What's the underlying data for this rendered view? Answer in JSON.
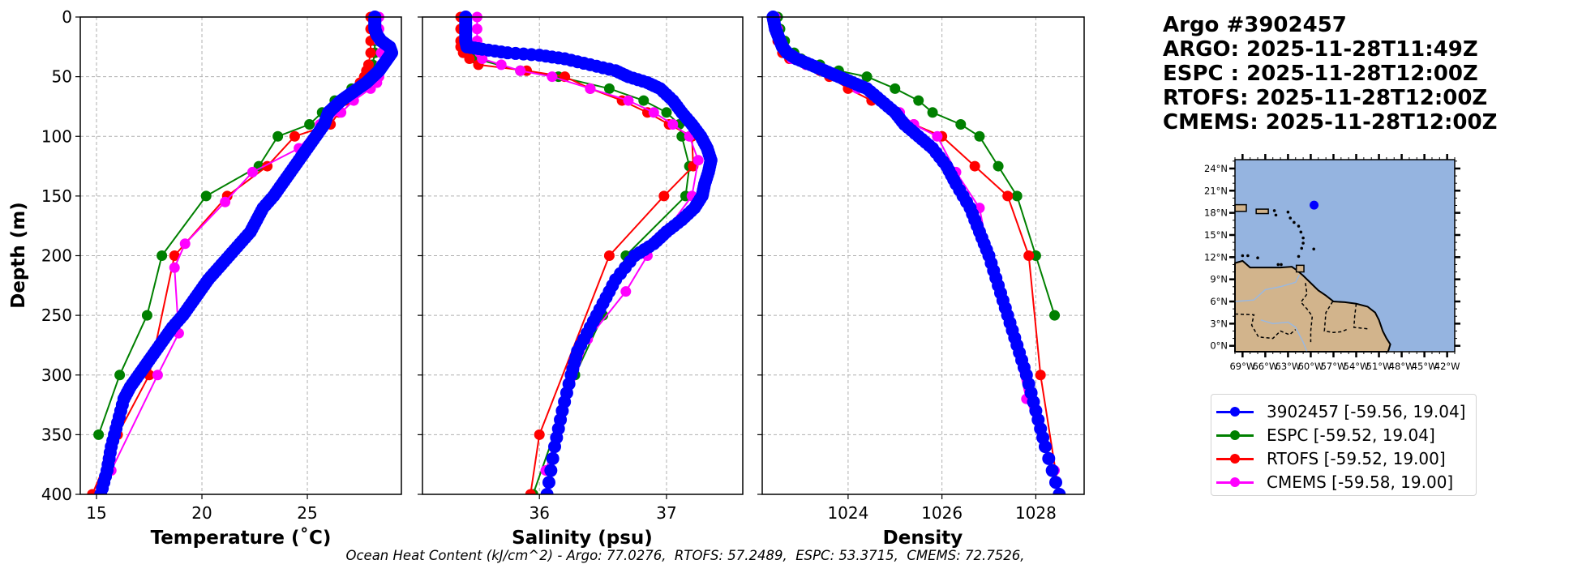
{
  "colors": {
    "argo": "#0000ff",
    "espc": "#008000",
    "rtofs": "#ff0000",
    "cmems": "#ff00ff",
    "ocean": "#95b4e0",
    "land": "#d2b48c",
    "river": "#9ab8e0",
    "grid": "#b0b0b0"
  },
  "title": {
    "lines": [
      "Argo #3902457",
      "ARGO: 2025-11-28T11:49Z",
      "ESPC : 2025-11-28T12:00Z",
      "RTOFS: 2025-11-28T12:00Z",
      "CMEMS: 2025-11-28T12:00Z"
    ]
  },
  "legend": {
    "items": [
      {
        "label": "3902457 [-59.56, 19.04]",
        "series": "argo"
      },
      {
        "label": "ESPC [-59.52, 19.04]",
        "series": "espc"
      },
      {
        "label": "RTOFS [-59.52, 19.00]",
        "series": "rtofs"
      },
      {
        "label": "CMEMS [-59.58, 19.00]",
        "series": "cmems"
      }
    ]
  },
  "footer": {
    "text": "Ocean Heat Content (kJ/cm^2) - Argo: 77.0276,  RTOFS: 57.2489,  ESPC: 53.3715,  CMEMS: 72.7526,"
  },
  "map": {
    "lat_labels": [
      "24°N",
      "21°N",
      "18°N",
      "15°N",
      "12°N",
      "9°N",
      "6°N",
      "3°N",
      "0°N"
    ],
    "lat_values": [
      24,
      21,
      18,
      15,
      12,
      9,
      6,
      3,
      0
    ],
    "lon_labels": [
      "69°W",
      "66°W",
      "63°W",
      "60°W",
      "57°W",
      "54°W",
      "51°W",
      "48°W",
      "45°W",
      "42°W"
    ],
    "lon_values": [
      -69,
      -66,
      -63,
      -60,
      -57,
      -54,
      -51,
      -48,
      -45,
      -42
    ],
    "lon_range": [
      -70,
      -41
    ],
    "lat_range": [
      -0.8,
      25.2
    ],
    "float_position": {
      "lon": -59.56,
      "lat": 19.04
    }
  },
  "chart_data": [
    {
      "type": "line",
      "title": "",
      "xlabel": "Temperature (˚C)",
      "ylabel": "Depth (m)",
      "xlim": [
        14.23,
        29.46
      ],
      "ylim": [
        400,
        0
      ],
      "xticks": [
        15,
        20,
        25
      ],
      "xtick_labels": [
        "15",
        "20",
        "25"
      ],
      "yticks": [
        0,
        50,
        100,
        150,
        200,
        250,
        300,
        350,
        400
      ],
      "ytick_labels": [
        "0",
        "50",
        "100",
        "150",
        "200",
        "250",
        "300",
        "350",
        "400"
      ],
      "grid": true,
      "series": [
        {
          "name": "argo",
          "x": [
            28.2,
            28.2,
            28.2,
            28.3,
            28.5,
            28.9,
            29.0,
            28.8,
            28.6,
            28.4,
            28.1,
            27.8,
            27.4,
            27.0,
            26.6,
            26.3,
            26.0,
            25.8,
            25.4,
            25.0,
            24.6,
            24.2,
            23.8,
            23.4,
            22.9,
            22.6,
            22.3,
            21.8,
            21.3,
            20.8,
            20.3,
            19.9,
            19.5,
            19.1,
            18.6,
            18.2,
            17.8,
            17.4,
            17.0,
            16.6,
            16.3,
            16.0,
            15.7,
            15.5,
            15.2
          ],
          "depth": [
            0,
            5,
            10,
            15,
            20,
            25,
            30,
            35,
            40,
            45,
            50,
            55,
            60,
            65,
            70,
            75,
            80,
            90,
            100,
            110,
            120,
            130,
            140,
            150,
            160,
            170,
            180,
            190,
            200,
            210,
            220,
            230,
            240,
            250,
            260,
            270,
            280,
            290,
            300,
            310,
            320,
            340,
            360,
            380,
            400
          ]
        },
        {
          "name": "espc",
          "x": [
            28.2,
            28.2,
            28.2,
            28.2,
            28.1,
            27.6,
            27.1,
            26.3,
            25.7,
            25.1,
            23.6,
            22.7,
            20.2,
            18.1,
            17.4,
            16.1,
            15.1
          ],
          "depth": [
            0,
            10,
            20,
            30,
            40,
            55,
            60,
            70,
            80,
            90,
            100,
            125,
            150,
            200,
            250,
            300,
            350
          ]
        },
        {
          "name": "rtofs",
          "x": [
            28.0,
            28.0,
            28.0,
            28.0,
            27.9,
            27.8,
            27.7,
            27.5,
            27.3,
            26.8,
            26.5,
            26.1,
            24.4,
            23.1,
            21.2,
            18.7,
            17.5,
            16.0,
            14.8
          ],
          "depth": [
            0,
            10,
            20,
            30,
            40,
            45,
            50,
            55,
            60,
            70,
            80,
            90,
            100,
            125,
            150,
            200,
            300,
            350,
            400
          ]
        },
        {
          "name": "cmems",
          "x": [
            28.4,
            28.4,
            28.4,
            28.5,
            28.5,
            28.4,
            28.3,
            28.0,
            27.2,
            26.6,
            25.6,
            24.6,
            22.4,
            21.1,
            19.2,
            18.7,
            18.9,
            17.9,
            15.7
          ],
          "depth": [
            0,
            10,
            20,
            30,
            40,
            50,
            55,
            60,
            70,
            80,
            90,
            110,
            130,
            155,
            190,
            210,
            265,
            300,
            380
          ]
        }
      ]
    },
    {
      "type": "line",
      "title": "",
      "xlabel": "Salinity (psu)",
      "ylabel": "",
      "xlim": [
        35.08,
        37.6
      ],
      "ylim": [
        400,
        0
      ],
      "xticks": [
        36,
        37
      ],
      "xtick_labels": [
        "36",
        "37"
      ],
      "grid": true,
      "series": [
        {
          "name": "argo",
          "x": [
            35.42,
            35.42,
            35.42,
            35.43,
            35.55,
            35.75,
            36.0,
            36.2,
            36.4,
            36.6,
            36.7,
            36.85,
            36.95,
            37.05,
            37.12,
            37.2,
            37.27,
            37.32,
            37.35,
            37.33,
            37.3,
            37.28,
            37.22,
            37.12,
            37.0,
            36.9,
            36.75,
            36.6,
            36.5,
            36.4,
            36.3,
            36.25,
            36.18,
            36.12,
            36.06
          ],
          "depth": [
            0,
            10,
            20,
            25,
            27,
            30,
            32,
            35,
            40,
            45,
            50,
            55,
            60,
            70,
            80,
            90,
            100,
            110,
            120,
            130,
            140,
            150,
            160,
            170,
            180,
            190,
            200,
            220,
            240,
            260,
            280,
            300,
            330,
            360,
            400
          ]
        },
        {
          "name": "espc",
          "x": [
            35.43,
            35.43,
            35.43,
            35.44,
            35.46,
            35.5,
            35.85,
            36.15,
            36.55,
            36.82,
            37.0,
            37.1,
            37.12,
            37.18,
            37.15,
            36.68,
            36.5,
            36.28,
            35.95
          ],
          "depth": [
            0,
            10,
            20,
            25,
            30,
            35,
            45,
            50,
            60,
            70,
            80,
            90,
            100,
            125,
            150,
            200,
            250,
            300,
            400
          ]
        },
        {
          "name": "rtofs",
          "x": [
            35.38,
            35.38,
            35.38,
            35.38,
            35.4,
            35.45,
            35.52,
            35.9,
            36.2,
            36.4,
            36.65,
            36.85,
            37.02,
            37.2,
            37.21,
            36.98,
            36.55,
            36.0,
            35.93
          ],
          "depth": [
            0,
            10,
            20,
            25,
            30,
            35,
            40,
            45,
            50,
            60,
            70,
            80,
            90,
            100,
            125,
            150,
            200,
            350,
            400
          ]
        },
        {
          "name": "cmems",
          "x": [
            35.51,
            35.51,
            35.51,
            35.52,
            35.53,
            35.55,
            35.7,
            35.85,
            36.1,
            36.4,
            36.7,
            36.9,
            37.05,
            37.18,
            37.25,
            37.2,
            36.85,
            36.68,
            36.38,
            36.05
          ],
          "depth": [
            0,
            10,
            20,
            25,
            30,
            35,
            40,
            45,
            50,
            60,
            70,
            80,
            90,
            100,
            120,
            150,
            200,
            230,
            270,
            380
          ]
        }
      ]
    },
    {
      "type": "line",
      "title": "",
      "xlabel": "Density",
      "ylabel": "",
      "xlim": [
        1022.17,
        1029.03
      ],
      "ylim": [
        400,
        0
      ],
      "xticks": [
        1024,
        1026,
        1028
      ],
      "xtick_labels": [
        "1024",
        "1026",
        "1028"
      ],
      "grid": true,
      "series": [
        {
          "name": "argo",
          "x": [
            1022.4,
            1022.45,
            1022.55,
            1022.6,
            1022.7,
            1022.9,
            1023.2,
            1023.5,
            1023.8,
            1024.1,
            1024.4,
            1024.7,
            1025.0,
            1025.2,
            1025.5,
            1025.8,
            1026.1,
            1026.3,
            1026.6,
            1026.8,
            1027.0,
            1027.2,
            1027.4,
            1027.6,
            1027.8,
            1028.0,
            1028.2,
            1028.5
          ],
          "depth": [
            0,
            10,
            20,
            25,
            30,
            35,
            40,
            45,
            50,
            55,
            60,
            70,
            80,
            90,
            100,
            110,
            125,
            140,
            160,
            180,
            200,
            225,
            250,
            275,
            300,
            330,
            360,
            400
          ]
        },
        {
          "name": "espc",
          "x": [
            1022.5,
            1022.55,
            1022.65,
            1022.85,
            1023.0,
            1023.4,
            1023.8,
            1024.4,
            1025.0,
            1025.5,
            1025.8,
            1026.4,
            1026.8,
            1027.2,
            1027.6,
            1028.0,
            1028.4
          ],
          "depth": [
            0,
            10,
            20,
            30,
            35,
            40,
            45,
            50,
            60,
            70,
            80,
            90,
            100,
            125,
            150,
            200,
            250
          ]
        },
        {
          "name": "rtofs",
          "x": [
            1022.4,
            1022.45,
            1022.5,
            1022.6,
            1022.75,
            1023.1,
            1023.4,
            1023.6,
            1024.0,
            1024.5,
            1025.0,
            1025.4,
            1026.0,
            1026.7,
            1027.4,
            1027.85,
            1028.1,
            1028.5
          ],
          "depth": [
            0,
            10,
            20,
            30,
            35,
            40,
            45,
            50,
            60,
            70,
            80,
            90,
            100,
            125,
            150,
            200,
            300,
            400
          ]
        },
        {
          "name": "cmems",
          "x": [
            1022.45,
            1022.5,
            1022.55,
            1022.7,
            1022.8,
            1023.1,
            1023.5,
            1023.8,
            1024.2,
            1024.7,
            1025.1,
            1025.4,
            1025.9,
            1026.3,
            1026.8,
            1027.0,
            1027.4,
            1027.8,
            1028.4
          ],
          "depth": [
            0,
            10,
            20,
            30,
            35,
            40,
            45,
            50,
            60,
            70,
            80,
            90,
            100,
            130,
            160,
            200,
            250,
            320,
            380
          ]
        }
      ]
    }
  ]
}
